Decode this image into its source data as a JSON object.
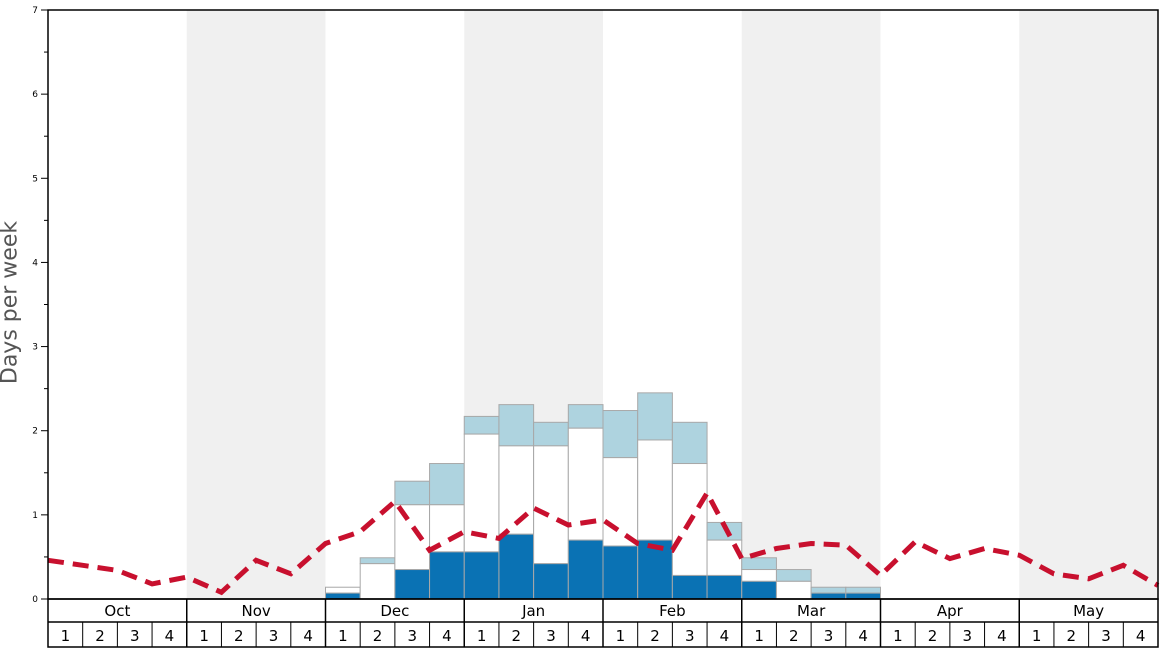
{
  "chart_data": {
    "type": "bar",
    "ylabel": "Days per week",
    "ylim": [
      0,
      7
    ],
    "y_ticks": [
      "0",
      "1",
      "2",
      "3",
      "4",
      "5",
      "6",
      "7"
    ],
    "months": [
      "Oct",
      "Nov",
      "Dec",
      "Jan",
      "Feb",
      "Mar",
      "Apr",
      "May"
    ],
    "weeks": [
      "1",
      "2",
      "3",
      "4"
    ],
    "shaded_months": [
      "Nov",
      "Jan",
      "Mar",
      "May"
    ],
    "colors": {
      "dark_series": "#0a72b4",
      "light_series": "#aed3df",
      "mid_series": "#ffffff",
      "dashed_line": "#c8102e",
      "shade_band": "#f0f0f0",
      "bar_border": "#a8a8a8"
    },
    "bars": {
      "bottom_dark": [
        0,
        0,
        0,
        0,
        0,
        0,
        0,
        0,
        0.07,
        0,
        0.35,
        0.56,
        0.56,
        0.77,
        0.42,
        0.7,
        0.63,
        0.7,
        0.28,
        0.28,
        0.21,
        0,
        0.07,
        0.07,
        0,
        0,
        0,
        0,
        0,
        0,
        0,
        0
      ],
      "total_white_top": [
        0,
        0,
        0,
        0,
        0,
        0,
        0,
        0,
        0.14,
        0.42,
        1.12,
        1.12,
        1.96,
        1.82,
        1.82,
        2.03,
        1.68,
        1.89,
        1.61,
        0.7,
        0.35,
        0.21,
        0.07,
        0.07,
        0,
        0,
        0,
        0,
        0,
        0,
        0,
        0
      ],
      "total_top": [
        0,
        0,
        0,
        0,
        0,
        0,
        0,
        0,
        0.14,
        0.49,
        1.4,
        1.61,
        2.17,
        2.31,
        2.1,
        2.31,
        2.24,
        2.45,
        2.1,
        0.91,
        0.49,
        0.35,
        0.14,
        0.14,
        0,
        0,
        0,
        0,
        0,
        0,
        0,
        0
      ]
    },
    "dashed_line_values": [
      0.46,
      0.4,
      0.34,
      0.18,
      0.26,
      0.08,
      0.46,
      0.3,
      0.66,
      0.8,
      1.16,
      0.58,
      0.8,
      0.72,
      1.08,
      0.88,
      0.94,
      0.66,
      0.58,
      1.26,
      0.48,
      0.6,
      0.66,
      0.64,
      0.28,
      0.68,
      0.48,
      0.6,
      0.52,
      0.3,
      0.24,
      0.4,
      0.16
    ]
  }
}
